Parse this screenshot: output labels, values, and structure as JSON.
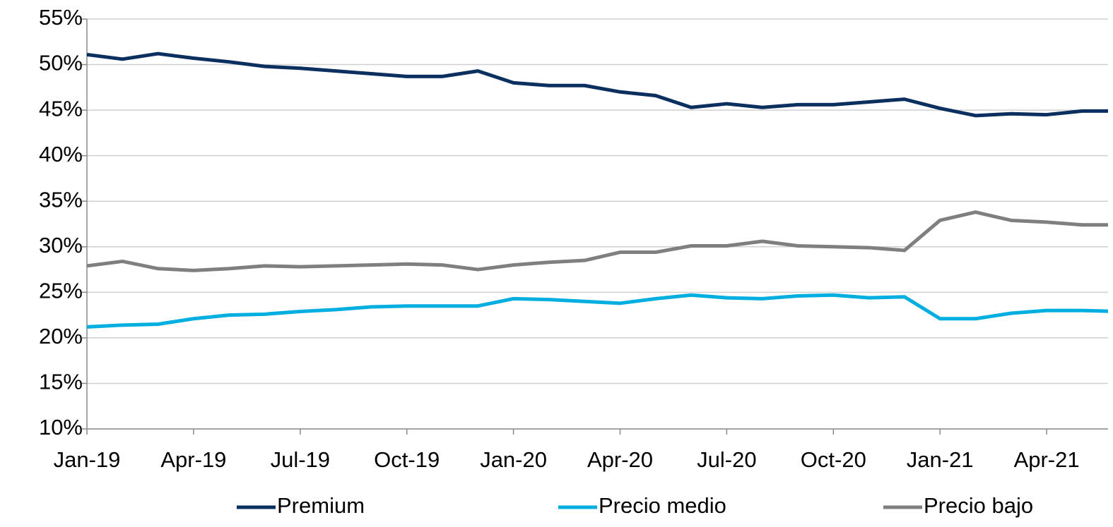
{
  "chart_data": {
    "type": "line",
    "categories": [
      "Jan-19",
      null,
      null,
      "Apr-19",
      null,
      null,
      "Jul-19",
      null,
      null,
      "Oct-19",
      null,
      null,
      "Jan-20",
      null,
      null,
      "Apr-20",
      null,
      null,
      "Jul-20",
      null,
      null,
      "Oct-20",
      null,
      null,
      "Jan-21",
      null,
      null,
      "Apr-21",
      null,
      null
    ],
    "series": [
      {
        "name": "Premium",
        "color": "#0b2f5e",
        "values": [
          51.1,
          50.6,
          51.2,
          50.7,
          50.3,
          49.8,
          49.6,
          49.3,
          49.0,
          48.7,
          48.7,
          49.3,
          48.0,
          47.7,
          47.7,
          47.0,
          46.6,
          45.3,
          45.7,
          45.3,
          45.6,
          45.6,
          45.9,
          46.2,
          45.2,
          44.4,
          44.6,
          44.5,
          44.9,
          44.9
        ]
      },
      {
        "name": "Precio medio",
        "color": "#00aee0",
        "values": [
          21.2,
          21.4,
          21.5,
          22.1,
          22.5,
          22.6,
          22.9,
          23.1,
          23.4,
          23.5,
          23.5,
          23.5,
          24.3,
          24.2,
          24.0,
          23.8,
          24.3,
          24.7,
          24.4,
          24.3,
          24.6,
          24.7,
          24.4,
          24.5,
          22.1,
          22.1,
          22.7,
          23.0,
          23.0,
          22.9
        ]
      },
      {
        "name": "Precio bajo",
        "color": "#7f7f7f",
        "values": [
          27.9,
          28.4,
          27.6,
          27.4,
          27.6,
          27.9,
          27.8,
          27.9,
          28.0,
          28.1,
          28.0,
          27.5,
          28.0,
          28.3,
          28.5,
          29.4,
          29.4,
          30.1,
          30.1,
          30.6,
          30.1,
          30.0,
          29.9,
          29.6,
          32.9,
          33.8,
          32.9,
          32.7,
          32.4,
          32.4
        ]
      }
    ],
    "ylim": [
      10,
      55
    ],
    "yticks": [
      {
        "value": 10,
        "label": "10%"
      },
      {
        "value": 15,
        "label": "15%"
      },
      {
        "value": 20,
        "label": "20%"
      },
      {
        "value": 25,
        "label": "25%"
      },
      {
        "value": 30,
        "label": "30%"
      },
      {
        "value": 35,
        "label": "35%"
      },
      {
        "value": 40,
        "label": "40%"
      },
      {
        "value": 45,
        "label": "45%"
      },
      {
        "value": 50,
        "label": "50%"
      },
      {
        "value": 55,
        "label": "55%"
      }
    ],
    "grid": true,
    "legend": "bottom"
  }
}
